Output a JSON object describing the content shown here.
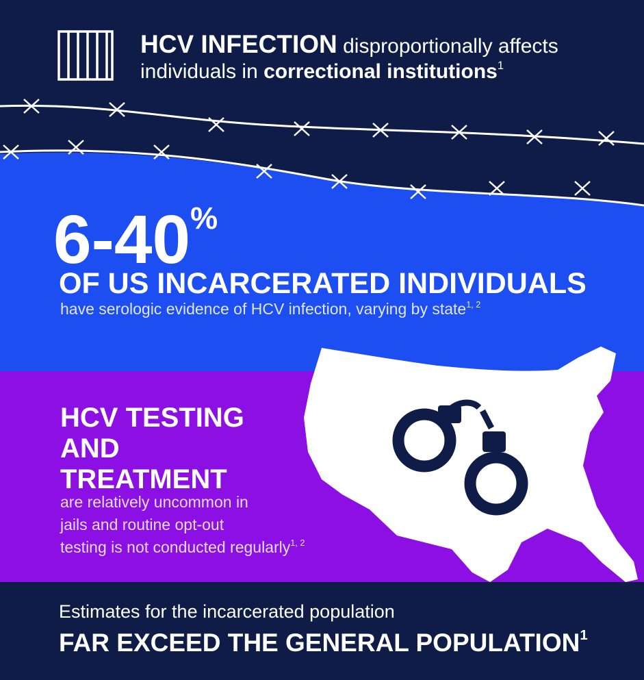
{
  "header": {
    "title_bold": "HCV INFECTION",
    "title_rest": "disproportionally affects",
    "line2_plain": "individuals in",
    "line2_bold": "correctional institutions",
    "line2_ref": "1"
  },
  "stat": {
    "number": "6-40",
    "unit": "%",
    "headline": "OF US INCARCERATED INDIVIDUALS",
    "detail": "have serologic evidence of HCV infection, varying by state",
    "detail_ref": "1, 2"
  },
  "testing": {
    "heading": [
      "HCV TESTING",
      "AND",
      "TREATMENT"
    ],
    "body": [
      "are relatively uncommon in",
      "jails and routine opt-out",
      "testing is not conducted regularly"
    ],
    "body_ref": "1, 2"
  },
  "footer": {
    "line1": "Estimates for the incarcerated population",
    "line2": "FAR EXCEED THE GENERAL POPULATION",
    "line2_ref": "1"
  }
}
